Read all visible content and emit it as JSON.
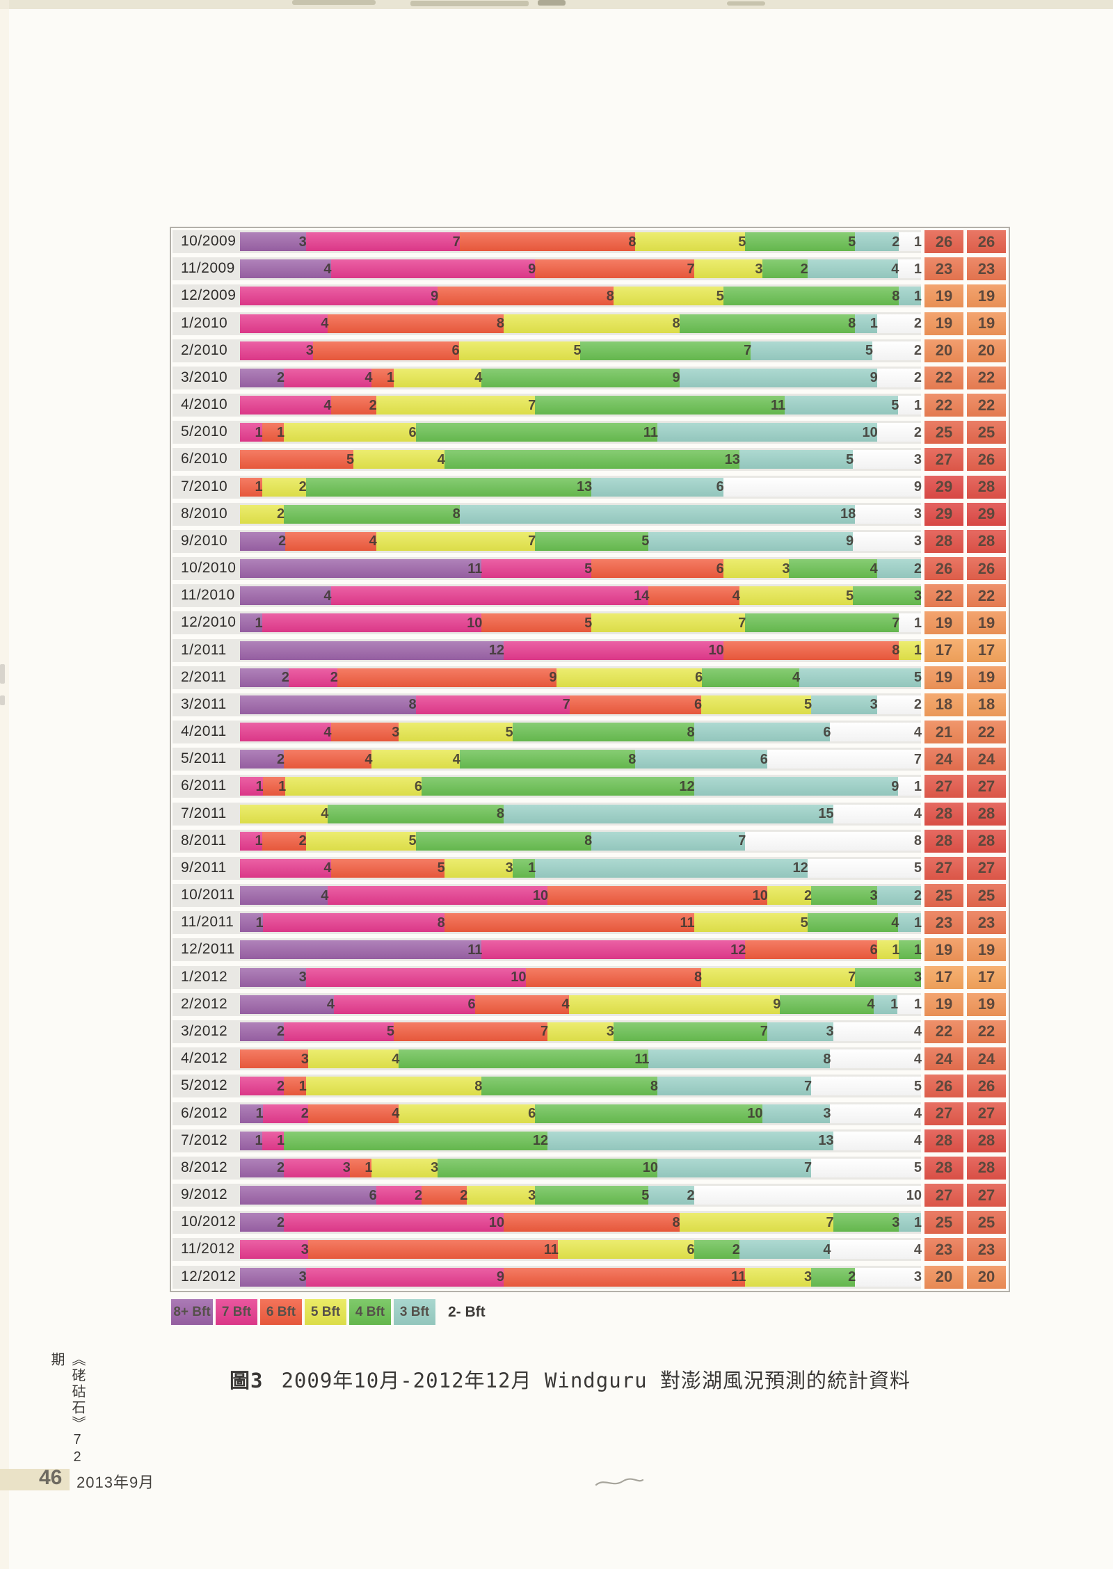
{
  "page": {
    "caption_prefix": "圖3",
    "caption_text": "2009年10月-2012年12月 Windguru 對澎湖風況預測的統計資料",
    "journal_vertical": "《硓𥑮石》72期",
    "page_number": "46",
    "issue_date": "2013年9月"
  },
  "legend": {
    "position": "bottom-left",
    "items": [
      {
        "key": "8+",
        "label": "8+ Bft",
        "color": "#9c63a8",
        "boxed": true
      },
      {
        "key": "7",
        "label": "7 Bft",
        "color": "#e63a8e",
        "boxed": true
      },
      {
        "key": "6",
        "label": "6 Bft",
        "color": "#f25c3e",
        "boxed": true
      },
      {
        "key": "5",
        "label": "5 Bft",
        "color": "#e7e84c",
        "boxed": true
      },
      {
        "key": "4",
        "label": "4 Bft",
        "color": "#69c051",
        "boxed": true
      },
      {
        "key": "3",
        "label": "3 Bft",
        "color": "#9ad0c6",
        "boxed": true
      },
      {
        "key": "2-",
        "label": "2- Bft",
        "color": "#ffffff",
        "boxed": false
      }
    ]
  },
  "chart_data": {
    "type": "bar",
    "orientation": "horizontal",
    "stacked": true,
    "title": "圖3 2009年10月-2012年12月 Windguru 對澎湖風況預測的統計資料",
    "unit": "days per month",
    "series_keys": [
      "8+",
      "7",
      "6",
      "5",
      "4",
      "3",
      "2-"
    ],
    "colors": {
      "8+": "#9c63a8",
      "7": "#e63a8e",
      "6": "#f25c3e",
      "5": "#e7e84c",
      "4": "#69c051",
      "3": "#9ad0c6",
      "2-": "#ffffff"
    },
    "summary_heat_scale": {
      "min_value": 17,
      "min_color": "#f5a45c",
      "max_value": 29,
      "max_color": "#df4a46"
    },
    "rows": [
      {
        "month": "10/2009",
        "segments": [
          [
            "8+",
            3
          ],
          [
            "7",
            7
          ],
          [
            "6",
            8
          ],
          [
            "5",
            5
          ],
          [
            "4",
            5
          ],
          [
            "3",
            2
          ],
          [
            "2-",
            1
          ]
        ],
        "totals": [
          26,
          26
        ]
      },
      {
        "month": "11/2009",
        "segments": [
          [
            "8+",
            4
          ],
          [
            "7",
            9
          ],
          [
            "6",
            7
          ],
          [
            "5",
            3
          ],
          [
            "4",
            2
          ],
          [
            "3",
            4
          ],
          [
            "2-",
            1
          ]
        ],
        "totals": [
          23,
          23
        ]
      },
      {
        "month": "12/2009",
        "segments": [
          [
            "7",
            9
          ],
          [
            "6",
            8
          ],
          [
            "5",
            5
          ],
          [
            "4",
            8
          ],
          [
            "3",
            1
          ]
        ],
        "totals": [
          19,
          19
        ]
      },
      {
        "month": "1/2010",
        "segments": [
          [
            "7",
            4
          ],
          [
            "6",
            8
          ],
          [
            "5",
            8
          ],
          [
            "4",
            8
          ],
          [
            "3",
            1
          ],
          [
            "2-",
            2
          ]
        ],
        "totals": [
          19,
          19
        ]
      },
      {
        "month": "2/2010",
        "segments": [
          [
            "7",
            3
          ],
          [
            "6",
            6
          ],
          [
            "5",
            5
          ],
          [
            "4",
            7
          ],
          [
            "3",
            5
          ],
          [
            "2-",
            2
          ]
        ],
        "totals": [
          20,
          20
        ]
      },
      {
        "month": "3/2010",
        "segments": [
          [
            "8+",
            2
          ],
          [
            "7",
            4
          ],
          [
            "6",
            1
          ],
          [
            "5",
            4
          ],
          [
            "4",
            9
          ],
          [
            "3",
            9
          ],
          [
            "2-",
            2
          ]
        ],
        "totals": [
          22,
          22
        ]
      },
      {
        "month": "4/2010",
        "segments": [
          [
            "7",
            4
          ],
          [
            "6",
            2
          ],
          [
            "5",
            7
          ],
          [
            "4",
            11
          ],
          [
            "3",
            5
          ],
          [
            "2-",
            1
          ]
        ],
        "totals": [
          22,
          22
        ]
      },
      {
        "month": "5/2010",
        "segments": [
          [
            "7",
            1
          ],
          [
            "6",
            1
          ],
          [
            "5",
            6
          ],
          [
            "4",
            11
          ],
          [
            "3",
            10
          ],
          [
            "2-",
            2
          ]
        ],
        "totals": [
          25,
          25
        ]
      },
      {
        "month": "6/2010",
        "segments": [
          [
            "6",
            5
          ],
          [
            "5",
            4
          ],
          [
            "4",
            13
          ],
          [
            "3",
            5
          ],
          [
            "2-",
            3
          ]
        ],
        "totals": [
          27,
          26
        ]
      },
      {
        "month": "7/2010",
        "segments": [
          [
            "6",
            1
          ],
          [
            "5",
            2
          ],
          [
            "4",
            13
          ],
          [
            "3",
            6
          ],
          [
            "2-",
            9
          ]
        ],
        "totals": [
          29,
          28
        ]
      },
      {
        "month": "8/2010",
        "segments": [
          [
            "5",
            2
          ],
          [
            "4",
            8
          ],
          [
            "3",
            18
          ],
          [
            "2-",
            3
          ]
        ],
        "totals": [
          29,
          29
        ]
      },
      {
        "month": "9/2010",
        "segments": [
          [
            "8+",
            2
          ],
          [
            "6",
            4
          ],
          [
            "5",
            7
          ],
          [
            "4",
            5
          ],
          [
            "3",
            9
          ],
          [
            "2-",
            3
          ]
        ],
        "totals": [
          28,
          28
        ]
      },
      {
        "month": "10/2010",
        "segments": [
          [
            "8+",
            11
          ],
          [
            "7",
            5
          ],
          [
            "6",
            6
          ],
          [
            "5",
            3
          ],
          [
            "4",
            4
          ],
          [
            "3",
            2
          ]
        ],
        "totals": [
          26,
          26
        ]
      },
      {
        "month": "11/2010",
        "segments": [
          [
            "8+",
            4
          ],
          [
            "7",
            14
          ],
          [
            "6",
            4
          ],
          [
            "5",
            5
          ],
          [
            "4",
            3
          ]
        ],
        "totals": [
          22,
          22
        ]
      },
      {
        "month": "12/2010",
        "segments": [
          [
            "8+",
            1
          ],
          [
            "7",
            10
          ],
          [
            "6",
            5
          ],
          [
            "5",
            7
          ],
          [
            "4",
            7
          ],
          [
            "2-",
            1
          ]
        ],
        "totals": [
          19,
          19
        ]
      },
      {
        "month": "1/2011",
        "segments": [
          [
            "8+",
            12
          ],
          [
            "7",
            10
          ],
          [
            "6",
            8
          ],
          [
            "5",
            1
          ]
        ],
        "totals": [
          17,
          17
        ]
      },
      {
        "month": "2/2011",
        "segments": [
          [
            "8+",
            2
          ],
          [
            "7",
            2
          ],
          [
            "6",
            9
          ],
          [
            "5",
            6
          ],
          [
            "4",
            4
          ],
          [
            "3",
            5
          ]
        ],
        "totals": [
          19,
          19
        ]
      },
      {
        "month": "3/2011",
        "segments": [
          [
            "8+",
            8
          ],
          [
            "7",
            7
          ],
          [
            "6",
            6
          ],
          [
            "5",
            5
          ],
          [
            "3",
            3
          ],
          [
            "2-",
            2
          ]
        ],
        "totals": [
          18,
          18
        ]
      },
      {
        "month": "4/2011",
        "segments": [
          [
            "7",
            4
          ],
          [
            "6",
            3
          ],
          [
            "5",
            5
          ],
          [
            "4",
            8
          ],
          [
            "3",
            6
          ],
          [
            "2-",
            4
          ]
        ],
        "totals": [
          21,
          22
        ]
      },
      {
        "month": "5/2011",
        "segments": [
          [
            "8+",
            2
          ],
          [
            "6",
            4
          ],
          [
            "5",
            4
          ],
          [
            "4",
            8
          ],
          [
            "3",
            6
          ],
          [
            "2-",
            7
          ]
        ],
        "totals": [
          24,
          24
        ]
      },
      {
        "month": "6/2011",
        "segments": [
          [
            "7",
            1
          ],
          [
            "6",
            1
          ],
          [
            "5",
            6
          ],
          [
            "4",
            12
          ],
          [
            "3",
            9
          ],
          [
            "2-",
            1
          ]
        ],
        "totals": [
          27,
          27
        ]
      },
      {
        "month": "7/2011",
        "segments": [
          [
            "5",
            4
          ],
          [
            "4",
            8
          ],
          [
            "3",
            15
          ],
          [
            "2-",
            4
          ]
        ],
        "totals": [
          28,
          28
        ]
      },
      {
        "month": "8/2011",
        "segments": [
          [
            "7",
            1
          ],
          [
            "6",
            2
          ],
          [
            "5",
            5
          ],
          [
            "4",
            8
          ],
          [
            "3",
            7
          ],
          [
            "2-",
            8
          ]
        ],
        "totals": [
          28,
          28
        ]
      },
      {
        "month": "9/2011",
        "segments": [
          [
            "7",
            4
          ],
          [
            "6",
            5
          ],
          [
            "5",
            3
          ],
          [
            "4",
            1
          ],
          [
            "3",
            12
          ],
          [
            "2-",
            5
          ]
        ],
        "totals": [
          27,
          27
        ]
      },
      {
        "month": "10/2011",
        "segments": [
          [
            "8+",
            4
          ],
          [
            "7",
            10
          ],
          [
            "6",
            10
          ],
          [
            "5",
            2
          ],
          [
            "4",
            3
          ],
          [
            "3",
            2
          ]
        ],
        "totals": [
          25,
          25
        ]
      },
      {
        "month": "11/2011",
        "segments": [
          [
            "8+",
            1
          ],
          [
            "7",
            8
          ],
          [
            "6",
            11
          ],
          [
            "5",
            5
          ],
          [
            "4",
            4
          ],
          [
            "3",
            1
          ]
        ],
        "totals": [
          23,
          23
        ]
      },
      {
        "month": "12/2011",
        "segments": [
          [
            "8+",
            11
          ],
          [
            "7",
            12
          ],
          [
            "6",
            6
          ],
          [
            "5",
            1
          ],
          [
            "4",
            1
          ]
        ],
        "totals": [
          19,
          19
        ]
      },
      {
        "month": "1/2012",
        "segments": [
          [
            "8+",
            3
          ],
          [
            "7",
            10
          ],
          [
            "6",
            8
          ],
          [
            "5",
            7
          ],
          [
            "4",
            3
          ]
        ],
        "totals": [
          17,
          17
        ]
      },
      {
        "month": "2/2012",
        "segments": [
          [
            "8+",
            4
          ],
          [
            "7",
            6
          ],
          [
            "6",
            4
          ],
          [
            "5",
            9
          ],
          [
            "4",
            4
          ],
          [
            "3",
            1
          ],
          [
            "2-",
            1
          ]
        ],
        "totals": [
          19,
          19
        ]
      },
      {
        "month": "3/2012",
        "segments": [
          [
            "8+",
            2
          ],
          [
            "7",
            5
          ],
          [
            "6",
            7
          ],
          [
            "5",
            3
          ],
          [
            "4",
            7
          ],
          [
            "3",
            3
          ],
          [
            "2-",
            4
          ]
        ],
        "totals": [
          22,
          22
        ]
      },
      {
        "month": "4/2012",
        "segments": [
          [
            "6",
            3
          ],
          [
            "5",
            4
          ],
          [
            "4",
            11
          ],
          [
            "3",
            8
          ],
          [
            "2-",
            4
          ]
        ],
        "totals": [
          24,
          24
        ]
      },
      {
        "month": "5/2012",
        "segments": [
          [
            "7",
            2
          ],
          [
            "6",
            1
          ],
          [
            "5",
            8
          ],
          [
            "4",
            8
          ],
          [
            "3",
            7
          ],
          [
            "2-",
            5
          ]
        ],
        "totals": [
          26,
          26
        ]
      },
      {
        "month": "6/2012",
        "segments": [
          [
            "8+",
            1
          ],
          [
            "7",
            2
          ],
          [
            "6",
            4
          ],
          [
            "5",
            6
          ],
          [
            "4",
            10
          ],
          [
            "3",
            3
          ],
          [
            "2-",
            4
          ]
        ],
        "totals": [
          27,
          27
        ]
      },
      {
        "month": "7/2012",
        "segments": [
          [
            "8+",
            1
          ],
          [
            "7",
            1
          ],
          [
            "4",
            12
          ],
          [
            "3",
            13
          ],
          [
            "2-",
            4
          ]
        ],
        "totals": [
          28,
          28
        ]
      },
      {
        "month": "8/2012",
        "segments": [
          [
            "8+",
            2
          ],
          [
            "7",
            3
          ],
          [
            "6",
            1
          ],
          [
            "5",
            3
          ],
          [
            "4",
            10
          ],
          [
            "3",
            7
          ],
          [
            "2-",
            5
          ]
        ],
        "totals": [
          28,
          28
        ]
      },
      {
        "month": "9/2012",
        "segments": [
          [
            "8+",
            6
          ],
          [
            "7",
            2
          ],
          [
            "6",
            2
          ],
          [
            "5",
            3
          ],
          [
            "4",
            5
          ],
          [
            "3",
            2
          ],
          [
            "2-",
            10
          ]
        ],
        "totals": [
          27,
          27
        ]
      },
      {
        "month": "10/2012",
        "segments": [
          [
            "8+",
            2
          ],
          [
            "7",
            10
          ],
          [
            "6",
            8
          ],
          [
            "5",
            7
          ],
          [
            "4",
            3
          ],
          [
            "3",
            1
          ]
        ],
        "totals": [
          25,
          25
        ]
      },
      {
        "month": "11/2012",
        "segments": [
          [
            "7",
            3
          ],
          [
            "6",
            11
          ],
          [
            "5",
            6
          ],
          [
            "4",
            2
          ],
          [
            "3",
            4
          ],
          [
            "2-",
            4
          ]
        ],
        "totals": [
          23,
          23
        ]
      },
      {
        "month": "12/2012",
        "segments": [
          [
            "8+",
            3
          ],
          [
            "7",
            9
          ],
          [
            "6",
            11
          ],
          [
            "5",
            3
          ],
          [
            "4",
            2
          ],
          [
            "2-",
            3
          ]
        ],
        "totals": [
          20,
          20
        ]
      }
    ]
  }
}
